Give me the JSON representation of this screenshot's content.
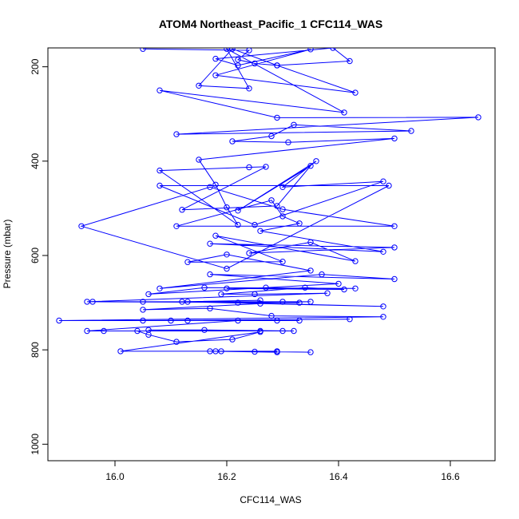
{
  "chart_data": {
    "type": "line",
    "title": "ATOM4 Northeast_Pacific_1 CFC114_WAS",
    "xlabel": "CFC114_WAS",
    "ylabel": "Pressure (mbar)",
    "xlim": [
      15.88,
      16.68
    ],
    "ylim": [
      1035,
      160
    ],
    "y_reversed": true,
    "grid": false,
    "x_ticks": [
      16.0,
      16.2,
      16.4,
      16.6
    ],
    "x_tick_labels": [
      "16.0",
      "16.2",
      "16.4",
      "16.6"
    ],
    "y_ticks": [
      200,
      400,
      600,
      800,
      1000
    ],
    "y_tick_labels": [
      "200",
      "400",
      "600",
      "800",
      "1000"
    ],
    "series": [
      {
        "color": "#0000ff",
        "marker": "open-circle",
        "points": [
          [
            16.05,
            162
          ],
          [
            16.24,
            165
          ],
          [
            16.22,
            185
          ],
          [
            16.25,
            193
          ],
          [
            16.29,
            197
          ],
          [
            16.42,
            188
          ],
          [
            16.39,
            160
          ],
          [
            16.18,
            183
          ],
          [
            16.22,
            197
          ],
          [
            16.35,
            163
          ],
          [
            16.18,
            218
          ],
          [
            16.43,
            255
          ],
          [
            16.29,
            197
          ],
          [
            16.21,
            162
          ],
          [
            16.15,
            240
          ],
          [
            16.24,
            246
          ],
          [
            16.2,
            162
          ],
          [
            16.41,
            297
          ],
          [
            16.08,
            250
          ],
          [
            16.29,
            308
          ],
          [
            16.65,
            307
          ],
          [
            16.11,
            343
          ],
          [
            16.53,
            336
          ],
          [
            16.32,
            323
          ],
          [
            16.28,
            347
          ],
          [
            16.21,
            358
          ],
          [
            16.31,
            360
          ],
          [
            16.5,
            352
          ],
          [
            16.15,
            397
          ],
          [
            16.18,
            450
          ],
          [
            16.2,
            498
          ],
          [
            16.22,
            535
          ],
          [
            16.08,
            420
          ],
          [
            16.24,
            413
          ],
          [
            16.27,
            412
          ],
          [
            16.12,
            503
          ],
          [
            16.29,
            495
          ],
          [
            16.35,
            410
          ],
          [
            16.22,
            505
          ],
          [
            16.36,
            400
          ],
          [
            16.3,
            455
          ],
          [
            16.48,
            443
          ],
          [
            16.25,
            535
          ],
          [
            16.08,
            452
          ],
          [
            16.49,
            452
          ],
          [
            16.2,
            628
          ],
          [
            15.94,
            538
          ],
          [
            16.17,
            455
          ],
          [
            16.3,
            502
          ],
          [
            16.5,
            538
          ],
          [
            16.11,
            538
          ],
          [
            16.28,
            483
          ],
          [
            16.3,
            517
          ],
          [
            16.33,
            532
          ],
          [
            16.26,
            548
          ],
          [
            16.48,
            592
          ],
          [
            16.17,
            575
          ],
          [
            16.5,
            583
          ],
          [
            16.24,
            595
          ],
          [
            16.35,
            572
          ],
          [
            16.43,
            612
          ],
          [
            16.18,
            558
          ],
          [
            16.3,
            613
          ],
          [
            16.13,
            614
          ],
          [
            16.2,
            598
          ],
          [
            16.35,
            632
          ],
          [
            16.08,
            670
          ],
          [
            16.37,
            640
          ],
          [
            16.5,
            650
          ],
          [
            16.17,
            640
          ],
          [
            16.4,
            660
          ],
          [
            16.27,
            668
          ],
          [
            16.06,
            682
          ],
          [
            16.16,
            668
          ],
          [
            16.43,
            670
          ],
          [
            16.2,
            670
          ],
          [
            16.41,
            672
          ],
          [
            16.34,
            668
          ],
          [
            16.19,
            682
          ],
          [
            16.25,
            682
          ],
          [
            16.38,
            680
          ],
          [
            15.95,
            698
          ],
          [
            16.3,
            698
          ],
          [
            16.05,
            698
          ],
          [
            16.33,
            700
          ],
          [
            15.96,
            698
          ],
          [
            16.35,
            698
          ],
          [
            16.22,
            700
          ],
          [
            16.48,
            708
          ],
          [
            16.12,
            698
          ],
          [
            16.26,
            695
          ],
          [
            16.13,
            698
          ],
          [
            16.26,
            702
          ],
          [
            16.05,
            715
          ],
          [
            16.17,
            712
          ],
          [
            16.28,
            728
          ],
          [
            16.48,
            730
          ],
          [
            15.9,
            738
          ],
          [
            16.33,
            738
          ],
          [
            16.1,
            738
          ],
          [
            16.42,
            735
          ],
          [
            16.05,
            738
          ],
          [
            16.29,
            738
          ],
          [
            16.13,
            738
          ],
          [
            16.22,
            738
          ],
          [
            15.95,
            760
          ],
          [
            16.26,
            760
          ],
          [
            15.98,
            760
          ],
          [
            16.3,
            760
          ],
          [
            16.06,
            758
          ],
          [
            16.16,
            758
          ],
          [
            16.32,
            760
          ],
          [
            16.04,
            760
          ],
          [
            16.06,
            768
          ],
          [
            16.11,
            783
          ],
          [
            16.21,
            778
          ],
          [
            16.26,
            762
          ],
          [
            16.01,
            803
          ],
          [
            16.29,
            803
          ],
          [
            16.17,
            803
          ],
          [
            16.29,
            805
          ],
          [
            16.18,
            803
          ],
          [
            16.35,
            805
          ],
          [
            16.19,
            803
          ],
          [
            16.25,
            804
          ]
        ]
      }
    ]
  }
}
